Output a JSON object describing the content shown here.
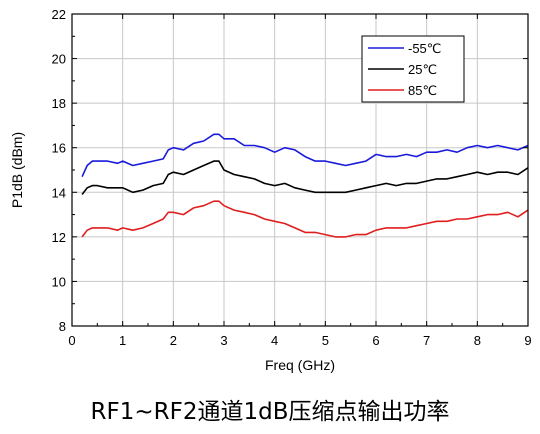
{
  "caption": "RF1~RF2通道1dB压缩点输出功率",
  "chart_data": {
    "type": "line",
    "title": "",
    "xlabel": "Freq (GHz)",
    "ylabel": "P1dB (dBm)",
    "xlim": [
      0,
      9
    ],
    "ylim": [
      8,
      22
    ],
    "xticks": [
      "0",
      "1",
      "2",
      "3",
      "4",
      "5",
      "6",
      "7",
      "8",
      "9"
    ],
    "yticks": [
      "8",
      "10",
      "12",
      "14",
      "16",
      "18",
      "20",
      "22"
    ],
    "grid": true,
    "legend_position": "top-right",
    "x": [
      0.2,
      0.3,
      0.4,
      0.5,
      0.7,
      0.9,
      1.0,
      1.2,
      1.4,
      1.6,
      1.8,
      1.9,
      2.0,
      2.2,
      2.4,
      2.6,
      2.8,
      2.9,
      3.0,
      3.2,
      3.4,
      3.6,
      3.8,
      4.0,
      4.2,
      4.4,
      4.6,
      4.8,
      5.0,
      5.2,
      5.4,
      5.6,
      5.8,
      6.0,
      6.2,
      6.4,
      6.6,
      6.8,
      7.0,
      7.2,
      7.4,
      7.6,
      7.8,
      8.0,
      8.2,
      8.4,
      8.6,
      8.8,
      9.0
    ],
    "series": [
      {
        "name": "-55℃",
        "color": "#1a1adb",
        "values": [
          14.7,
          15.2,
          15.4,
          15.4,
          15.4,
          15.3,
          15.4,
          15.2,
          15.3,
          15.4,
          15.5,
          15.9,
          16.0,
          15.9,
          16.2,
          16.3,
          16.6,
          16.6,
          16.4,
          16.4,
          16.1,
          16.1,
          16.0,
          15.8,
          16.0,
          15.9,
          15.6,
          15.4,
          15.4,
          15.3,
          15.2,
          15.3,
          15.4,
          15.7,
          15.6,
          15.6,
          15.7,
          15.6,
          15.8,
          15.8,
          15.9,
          15.8,
          16.0,
          16.1,
          16.0,
          16.1,
          16.0,
          15.9,
          16.1
        ]
      },
      {
        "name": "25℃",
        "color": "#000000",
        "values": [
          13.9,
          14.2,
          14.3,
          14.3,
          14.2,
          14.2,
          14.2,
          14.0,
          14.1,
          14.3,
          14.4,
          14.8,
          14.9,
          14.8,
          15.0,
          15.2,
          15.4,
          15.4,
          15.0,
          14.8,
          14.7,
          14.6,
          14.4,
          14.3,
          14.4,
          14.2,
          14.1,
          14.0,
          14.0,
          14.0,
          14.0,
          14.1,
          14.2,
          14.3,
          14.4,
          14.3,
          14.4,
          14.4,
          14.5,
          14.6,
          14.6,
          14.7,
          14.8,
          14.9,
          14.8,
          14.9,
          14.9,
          14.8,
          15.1
        ]
      },
      {
        "name": "85℃",
        "color": "#e01e1e",
        "values": [
          12.0,
          12.3,
          12.4,
          12.4,
          12.4,
          12.3,
          12.4,
          12.3,
          12.4,
          12.6,
          12.8,
          13.1,
          13.1,
          13.0,
          13.3,
          13.4,
          13.6,
          13.6,
          13.4,
          13.2,
          13.1,
          13.0,
          12.8,
          12.7,
          12.6,
          12.4,
          12.2,
          12.2,
          12.1,
          12.0,
          12.0,
          12.1,
          12.1,
          12.3,
          12.4,
          12.4,
          12.4,
          12.5,
          12.6,
          12.7,
          12.7,
          12.8,
          12.8,
          12.9,
          13.0,
          13.0,
          13.1,
          12.9,
          13.2
        ]
      }
    ]
  }
}
